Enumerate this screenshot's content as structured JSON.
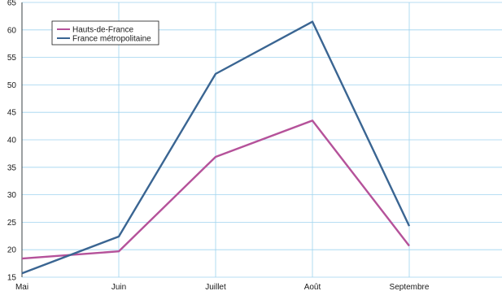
{
  "chart_data": {
    "type": "line",
    "title": "",
    "xlabel": "",
    "ylabel": "",
    "categories": [
      "Mai",
      "Juin",
      "Juillet",
      "Août",
      "Septembre"
    ],
    "ylim": [
      15,
      65
    ],
    "yticks": [
      15,
      20,
      25,
      30,
      35,
      40,
      45,
      50,
      55,
      60,
      65
    ],
    "grid": true,
    "legend_position": "top-left",
    "series": [
      {
        "name": "Hauts-de-France",
        "color": "#b5529a",
        "values": [
          18.4,
          19.7,
          36.9,
          43.5,
          20.7
        ]
      },
      {
        "name": "France métropolitaine",
        "color": "#3a6592",
        "values": [
          15.7,
          22.4,
          52.0,
          61.5,
          24.3
        ]
      }
    ]
  }
}
